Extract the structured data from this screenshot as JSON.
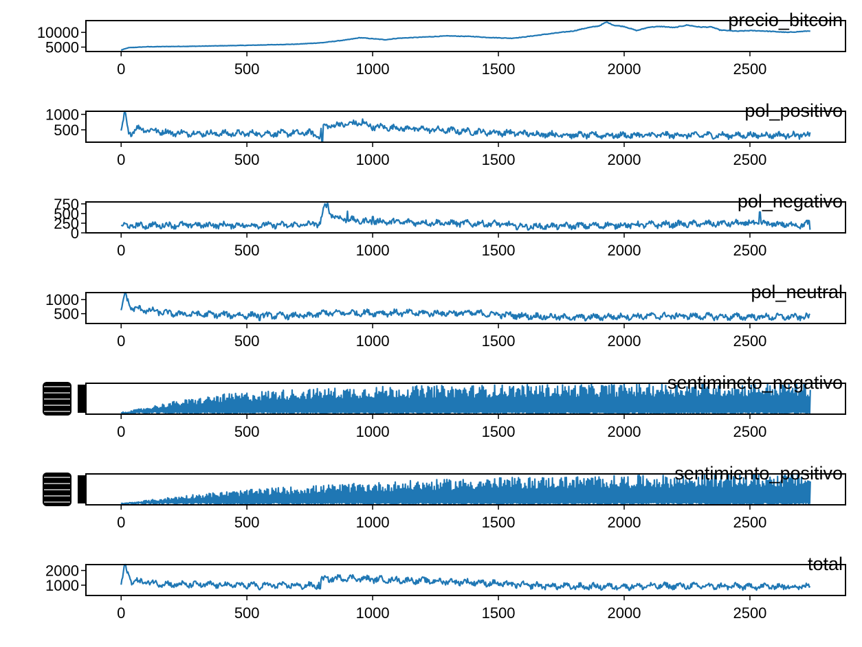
{
  "chart_data": {
    "type": "line",
    "line_color": "#1f77b4",
    "xlim": [
      -140,
      2880
    ],
    "x_ticks": [
      0,
      500,
      1000,
      1500,
      2000,
      2500
    ],
    "panels": [
      {
        "title": "precio_bitcoin",
        "ylim": [
          3500,
          14000
        ],
        "y_ticks": [
          5000,
          10000
        ],
        "kind": "smooth",
        "points": [
          [
            0,
            4000
          ],
          [
            30,
            4800
          ],
          [
            100,
            5100
          ],
          [
            300,
            5300
          ],
          [
            500,
            5600
          ],
          [
            700,
            6000
          ],
          [
            800,
            6500
          ],
          [
            900,
            7500
          ],
          [
            950,
            8200
          ],
          [
            1050,
            7500
          ],
          [
            1100,
            8000
          ],
          [
            1300,
            8800
          ],
          [
            1400,
            8600
          ],
          [
            1450,
            8300
          ],
          [
            1550,
            8000
          ],
          [
            1600,
            8400
          ],
          [
            1700,
            9500
          ],
          [
            1800,
            10500
          ],
          [
            1850,
            11500
          ],
          [
            1900,
            12200
          ],
          [
            1930,
            13500
          ],
          [
            1960,
            12400
          ],
          [
            2000,
            12000
          ],
          [
            2050,
            10600
          ],
          [
            2100,
            11800
          ],
          [
            2150,
            12000
          ],
          [
            2200,
            11600
          ],
          [
            2250,
            12500
          ],
          [
            2300,
            11800
          ],
          [
            2350,
            11800
          ],
          [
            2380,
            10800
          ],
          [
            2450,
            10400
          ],
          [
            2500,
            10600
          ],
          [
            2550,
            10500
          ],
          [
            2650,
            10000
          ],
          [
            2740,
            10500
          ]
        ]
      },
      {
        "title": "pol_positivo",
        "ylim": [
          100,
          1100
        ],
        "y_ticks": [
          500,
          1000
        ],
        "kind": "noisy",
        "points": [
          [
            0,
            400
          ],
          [
            15,
            1050
          ],
          [
            30,
            350
          ],
          [
            60,
            550
          ],
          [
            200,
            400
          ],
          [
            400,
            380
          ],
          [
            600,
            380
          ],
          [
            750,
            400
          ],
          [
            790,
            300
          ],
          [
            800,
            600
          ],
          [
            850,
            650
          ],
          [
            950,
            720
          ],
          [
            1000,
            600
          ],
          [
            1200,
            520
          ],
          [
            1400,
            440
          ],
          [
            1600,
            380
          ],
          [
            1800,
            330
          ],
          [
            2000,
            320
          ],
          [
            2200,
            330
          ],
          [
            2400,
            320
          ],
          [
            2600,
            330
          ],
          [
            2740,
            320
          ]
        ],
        "spikes": [
          [
            800,
            120
          ],
          [
            960,
            850
          ],
          [
            1050,
            560
          ]
        ]
      },
      {
        "title": "pol_negativo",
        "ylim": [
          0,
          800
        ],
        "y_ticks": [
          0,
          250,
          500,
          750
        ],
        "kind": "noisy",
        "points": [
          [
            0,
            180
          ],
          [
            200,
            200
          ],
          [
            500,
            200
          ],
          [
            700,
            200
          ],
          [
            790,
            240
          ],
          [
            810,
            680
          ],
          [
            850,
            400
          ],
          [
            950,
            300
          ],
          [
            1100,
            280
          ],
          [
            1300,
            250
          ],
          [
            1500,
            230
          ],
          [
            1600,
            160
          ],
          [
            1800,
            180
          ],
          [
            2000,
            200
          ],
          [
            2200,
            220
          ],
          [
            2500,
            250
          ],
          [
            2700,
            200
          ],
          [
            2740,
            250
          ]
        ],
        "spikes": [
          [
            820,
            760
          ],
          [
            900,
            560
          ],
          [
            1000,
            420
          ],
          [
            2540,
            540
          ],
          [
            2740,
            80
          ]
        ]
      },
      {
        "title": "pol_neutral",
        "ylim": [
          150,
          1250
        ],
        "y_ticks": [
          500,
          1000
        ],
        "kind": "noisy",
        "points": [
          [
            0,
            600
          ],
          [
            15,
            1200
          ],
          [
            40,
            700
          ],
          [
            200,
            500
          ],
          [
            500,
            440
          ],
          [
            750,
            420
          ],
          [
            800,
            520
          ],
          [
            1000,
            530
          ],
          [
            1200,
            520
          ],
          [
            1400,
            520
          ],
          [
            1600,
            420
          ],
          [
            1800,
            360
          ],
          [
            2000,
            400
          ],
          [
            2200,
            420
          ],
          [
            2400,
            390
          ],
          [
            2740,
            380
          ]
        ],
        "spikes": [
          [
            15,
            1250
          ],
          [
            550,
            260
          ]
        ]
      },
      {
        "title": "sentimineto_negativo",
        "ylim": [
          0,
          100
        ],
        "y_ticks": [],
        "kind": "envelope",
        "envelope": [
          [
            0,
            0,
            4
          ],
          [
            200,
            0,
            40
          ],
          [
            400,
            0,
            64
          ],
          [
            600,
            0,
            78
          ],
          [
            800,
            0,
            84
          ],
          [
            1000,
            0,
            90
          ],
          [
            1500,
            0,
            95
          ],
          [
            2000,
            0,
            98
          ],
          [
            2740,
            0,
            100
          ]
        ],
        "y_tick_clutter": true
      },
      {
        "title": "sentimiento_positivo",
        "ylim": [
          0,
          100
        ],
        "y_ticks": [],
        "kind": "envelope",
        "envelope": [
          [
            0,
            0,
            4
          ],
          [
            300,
            0,
            35
          ],
          [
            600,
            0,
            55
          ],
          [
            900,
            0,
            68
          ],
          [
            1200,
            0,
            80
          ],
          [
            1500,
            0,
            88
          ],
          [
            2000,
            0,
            95
          ],
          [
            2740,
            0,
            100
          ]
        ],
        "y_tick_clutter": true
      },
      {
        "title": "total",
        "ylim": [
          300,
          2400
        ],
        "y_ticks": [
          1000,
          2000
        ],
        "kind": "noisy",
        "points": [
          [
            0,
            1000
          ],
          [
            15,
            2300
          ],
          [
            40,
            1300
          ],
          [
            200,
            1050
          ],
          [
            500,
            1000
          ],
          [
            780,
            960
          ],
          [
            800,
            1400
          ],
          [
            900,
            1500
          ],
          [
            1000,
            1400
          ],
          [
            1200,
            1300
          ],
          [
            1400,
            1200
          ],
          [
            1600,
            1000
          ],
          [
            1800,
            900
          ],
          [
            2000,
            920
          ],
          [
            2200,
            950
          ],
          [
            2400,
            920
          ],
          [
            2740,
            900
          ]
        ],
        "spikes": [
          [
            15,
            2400
          ],
          [
            550,
            700
          ],
          [
            790,
            760
          ]
        ]
      }
    ]
  }
}
